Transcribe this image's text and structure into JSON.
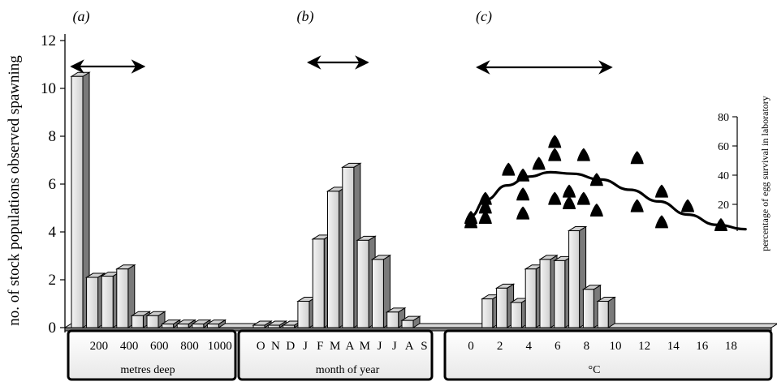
{
  "chart_data": [
    {
      "type": "bar",
      "panel_label": "(a)",
      "xlabel": "metres deep",
      "ylabel": "no. of stock populations observed spawning",
      "ylim": [
        0,
        12
      ],
      "yticks": [
        "0",
        "2",
        "4",
        "6",
        "8",
        "10",
        "12"
      ],
      "tick_labels": [
        "200",
        "400",
        "600",
        "800",
        "1000"
      ],
      "values": [
        10.5,
        2.1,
        2.15,
        2.45,
        0.5,
        0.5,
        0.15,
        0.15,
        0.15,
        0.15
      ],
      "range_arrow": [
        0,
        4
      ]
    },
    {
      "type": "bar",
      "panel_label": "(b)",
      "xlabel": "month of year",
      "ylim": [
        0,
        12
      ],
      "categories": [
        "O",
        "N",
        "D",
        "J",
        "F",
        "M",
        "A",
        "M",
        "J",
        "J",
        "A",
        "S"
      ],
      "values": [
        0.1,
        0.1,
        0.1,
        1.1,
        3.7,
        5.7,
        6.7,
        3.65,
        2.85,
        0.65,
        0.3,
        0
      ],
      "range_arrow": [
        3.7,
        7.7
      ]
    },
    {
      "type": "bar",
      "panel_label": "(c)",
      "xlabel": "°C",
      "ylim": [
        0,
        12
      ],
      "x": [
        0,
        1,
        2,
        3,
        4,
        5,
        6,
        7,
        8,
        9,
        10,
        11,
        12,
        13,
        14,
        15,
        16,
        17,
        18,
        19
      ],
      "tick_labels": [
        "0",
        "2",
        "4",
        "6",
        "8",
        "10",
        "12",
        "14",
        "16",
        "18"
      ],
      "values": [
        0,
        1.2,
        1.65,
        1.05,
        2.45,
        2.85,
        2.8,
        4.05,
        1.6,
        1.1,
        0,
        0,
        0,
        0,
        0,
        0,
        0,
        0,
        0,
        0
      ],
      "range_arrow": [
        1,
        10
      ],
      "secondary_axis": {
        "label": "percentage of egg survival in laboratory",
        "ylim": [
          0,
          80
        ],
        "yticks": [
          "20",
          "40",
          "60",
          "80"
        ],
        "scatter": [
          {
            "x": 0,
            "y": 7
          },
          {
            "x": 0,
            "y": 10
          },
          {
            "x": 1,
            "y": 10
          },
          {
            "x": 1,
            "y": 17
          },
          {
            "x": 1,
            "y": 23
          },
          {
            "x": 2.6,
            "y": 43
          },
          {
            "x": 3.6,
            "y": 13
          },
          {
            "x": 3.6,
            "y": 26
          },
          {
            "x": 3.6,
            "y": 39
          },
          {
            "x": 4.7,
            "y": 47
          },
          {
            "x": 5.8,
            "y": 23
          },
          {
            "x": 5.8,
            "y": 53
          },
          {
            "x": 5.8,
            "y": 62
          },
          {
            "x": 6.8,
            "y": 20
          },
          {
            "x": 6.8,
            "y": 28
          },
          {
            "x": 7.8,
            "y": 23
          },
          {
            "x": 7.8,
            "y": 53
          },
          {
            "x": 8.7,
            "y": 15
          },
          {
            "x": 8.7,
            "y": 36
          },
          {
            "x": 11.5,
            "y": 18
          },
          {
            "x": 11.5,
            "y": 51
          },
          {
            "x": 13.2,
            "y": 7
          },
          {
            "x": 13.2,
            "y": 28
          },
          {
            "x": 15,
            "y": 18
          },
          {
            "x": 17.3,
            "y": 5
          }
        ],
        "curve": [
          {
            "x": 0,
            "y": 12
          },
          {
            "x": 1,
            "y": 23
          },
          {
            "x": 2.5,
            "y": 33
          },
          {
            "x": 4,
            "y": 39
          },
          {
            "x": 5.5,
            "y": 42
          },
          {
            "x": 7,
            "y": 41
          },
          {
            "x": 9,
            "y": 37
          },
          {
            "x": 11,
            "y": 30
          },
          {
            "x": 13,
            "y": 22
          },
          {
            "x": 15,
            "y": 13
          },
          {
            "x": 17,
            "y": 6
          },
          {
            "x": 19,
            "y": 3
          }
        ]
      }
    }
  ]
}
